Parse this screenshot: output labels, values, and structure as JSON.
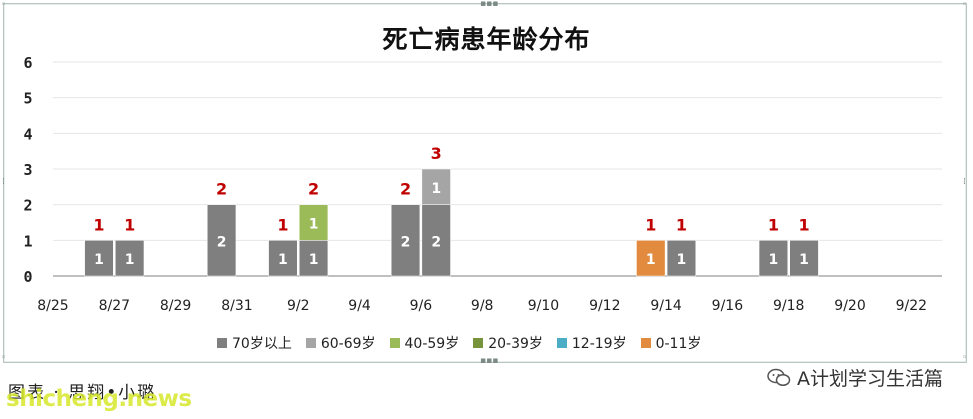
{
  "chart_data": {
    "type": "bar",
    "stacked": true,
    "title": "死亡病患年龄分布",
    "categories": [
      "8/25",
      "8/26",
      "8/27",
      "8/28",
      "8/29",
      "8/30",
      "8/31",
      "9/1",
      "9/2",
      "9/3",
      "9/4",
      "9/5",
      "9/6",
      "9/7",
      "9/8",
      "9/9",
      "9/10",
      "9/11",
      "9/12",
      "9/13",
      "9/14",
      "9/15",
      "9/16",
      "9/17",
      "9/18",
      "9/19",
      "9/20",
      "9/21",
      "9/22"
    ],
    "tick_labels": [
      "8/25",
      "8/27",
      "8/29",
      "8/31",
      "9/2",
      "9/4",
      "9/6",
      "9/8",
      "9/10",
      "9/12",
      "9/14",
      "9/16",
      "9/18",
      "9/20",
      "9/22"
    ],
    "ylim": [
      0,
      6
    ],
    "y_ticks": [
      "0",
      "1",
      "2",
      "3",
      "4",
      "5",
      "6"
    ],
    "grid": true,
    "legend_position": "bottom",
    "series": [
      {
        "name": "70岁以上",
        "color": "#7f7f7f",
        "values": [
          0,
          1,
          1,
          0,
          0,
          2,
          0,
          1,
          1,
          0,
          0,
          2,
          2,
          0,
          0,
          0,
          0,
          0,
          0,
          0,
          1,
          0,
          0,
          1,
          1,
          0,
          0,
          0,
          0
        ]
      },
      {
        "name": "60-69岁",
        "color": "#a5a5a5",
        "values": [
          0,
          0,
          0,
          0,
          0,
          0,
          0,
          0,
          0,
          0,
          0,
          0,
          1,
          0,
          0,
          0,
          0,
          0,
          0,
          0,
          0,
          0,
          0,
          0,
          0,
          0,
          0,
          0,
          0
        ]
      },
      {
        "name": "40-59岁",
        "color": "#9bbb59",
        "values": [
          0,
          0,
          0,
          0,
          0,
          0,
          0,
          0,
          1,
          0,
          0,
          0,
          0,
          0,
          0,
          0,
          0,
          0,
          0,
          0,
          0,
          0,
          0,
          0,
          0,
          0,
          0,
          0,
          0
        ]
      },
      {
        "name": "20-39岁",
        "color": "#77933c",
        "values": [
          0,
          0,
          0,
          0,
          0,
          0,
          0,
          0,
          0,
          0,
          0,
          0,
          0,
          0,
          0,
          0,
          0,
          0,
          0,
          0,
          0,
          0,
          0,
          0,
          0,
          0,
          0,
          0,
          0
        ]
      },
      {
        "name": "12-19岁",
        "color": "#4bacc6",
        "values": [
          0,
          0,
          0,
          0,
          0,
          0,
          0,
          0,
          0,
          0,
          0,
          0,
          0,
          0,
          0,
          0,
          0,
          0,
          0,
          0,
          0,
          0,
          0,
          0,
          0,
          0,
          0,
          0,
          0
        ]
      },
      {
        "name": "0-11岁",
        "color": "#e28b3f",
        "values": [
          0,
          0,
          0,
          0,
          0,
          0,
          0,
          0,
          0,
          0,
          0,
          0,
          0,
          0,
          0,
          0,
          0,
          0,
          0,
          1,
          0,
          0,
          0,
          0,
          0,
          0,
          0,
          0,
          0
        ]
      }
    ],
    "total_label_color": "#c00000"
  },
  "footer": {
    "credit": "图表 · 思翔•小璐",
    "brand": "A计划学习生活篇",
    "watermark": "shicheng.news"
  },
  "colors": {
    "axis": "#808080",
    "grid": "#e6e6e6"
  }
}
